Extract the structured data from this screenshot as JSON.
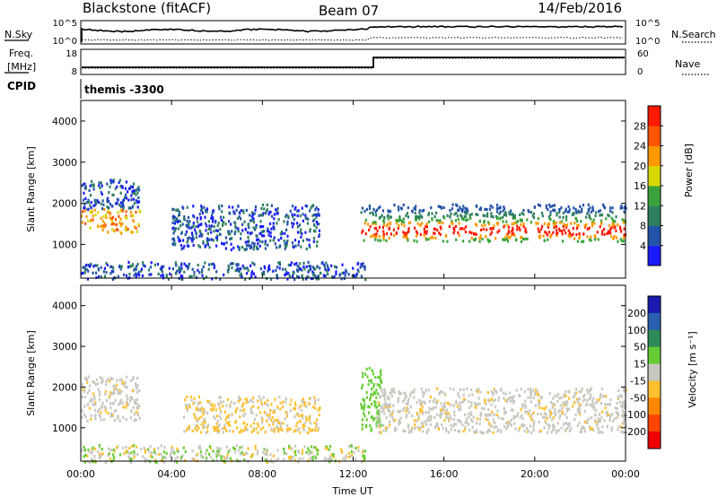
{
  "header": {
    "station": "Blackstone (fitACF)",
    "beam": "Beam 07",
    "date": "14/Feb/2016"
  },
  "noise_panel": {
    "left_label": "N.Sky",
    "left_ticks": [
      "10^5",
      "10^0"
    ],
    "right_label": "N.Search",
    "right_ticks": [
      "10^5",
      "10^0"
    ]
  },
  "freq_panel": {
    "left_label_line1": "Freq.",
    "left_label_line2": "[MHz]",
    "left_ticks": [
      "18",
      "8"
    ],
    "right_label": "Nave",
    "right_ticks": [
      "60",
      "0"
    ]
  },
  "cpid_panel": {
    "label": "CPID",
    "value": "themis -3300"
  },
  "chart_data": [
    {
      "type": "heatmap",
      "title": "",
      "ylabel": "Slant Range [km]",
      "y_ticks": [
        "1000",
        "2000",
        "3000",
        "4000"
      ],
      "ylim": [
        180,
        4500
      ],
      "xlim_hours": [
        0,
        24
      ],
      "colorbar": {
        "label": "Power [dB]",
        "ticks": [
          "4",
          "8",
          "12",
          "16",
          "20",
          "24",
          "28"
        ],
        "colors": [
          "#1a1aff",
          "#2353a8",
          "#2f7f5f",
          "#3aa23a",
          "#d8d800",
          "#ff9900",
          "#ff5500",
          "#ff1a00"
        ]
      },
      "features": [
        {
          "name": "echo band early",
          "time_h": [
            0.0,
            2.6
          ],
          "range_km": [
            1300,
            2600
          ]
        },
        {
          "name": "near-range scatter",
          "time_h": [
            0.0,
            12.5
          ],
          "range_km": [
            180,
            600
          ]
        },
        {
          "name": "arc echoes",
          "time_h": [
            4.0,
            10.5
          ],
          "range_km": [
            900,
            2000
          ]
        },
        {
          "name": "main echo band",
          "time_h": [
            12.3,
            24.0
          ],
          "range_km": [
            1100,
            2000
          ]
        }
      ]
    },
    {
      "type": "heatmap",
      "title": "",
      "ylabel": "Slant Range [km]",
      "y_ticks": [
        "1000",
        "2000",
        "3000",
        "4000"
      ],
      "ylim": [
        180,
        4500
      ],
      "xlim_hours": [
        0,
        24
      ],
      "x_ticks": [
        "00:00",
        "04:00",
        "08:00",
        "12:00",
        "16:00",
        "20:00",
        "00:00"
      ],
      "xlabel": "Time UT",
      "colorbar": {
        "label": "Velocity [m s⁻¹]",
        "ticks": [
          "200",
          "100",
          "50",
          "15",
          "-15",
          "-50",
          "-100",
          "-200"
        ],
        "colors": [
          "#1a1ab0",
          "#2a5fb0",
          "#2e8b57",
          "#66cc33",
          "#c8c8c0",
          "#ffc030",
          "#ff8800",
          "#ff4400",
          "#ee0000"
        ]
      },
      "features": [
        {
          "name": "ground scatter early",
          "time_h": [
            0.0,
            2.6
          ],
          "range_km": [
            1200,
            2300
          ]
        },
        {
          "name": "near-range",
          "time_h": [
            0.0,
            12.5
          ],
          "range_km": [
            180,
            600
          ]
        },
        {
          "name": "arc echoes",
          "time_h": [
            4.5,
            10.5
          ],
          "range_km": [
            900,
            1800
          ]
        },
        {
          "name": "green streak",
          "time_h": [
            12.3,
            13.2
          ],
          "range_km": [
            900,
            2500
          ]
        },
        {
          "name": "ground scatter band",
          "time_h": [
            13.0,
            24.0
          ],
          "range_km": [
            900,
            2000
          ]
        }
      ]
    }
  ]
}
